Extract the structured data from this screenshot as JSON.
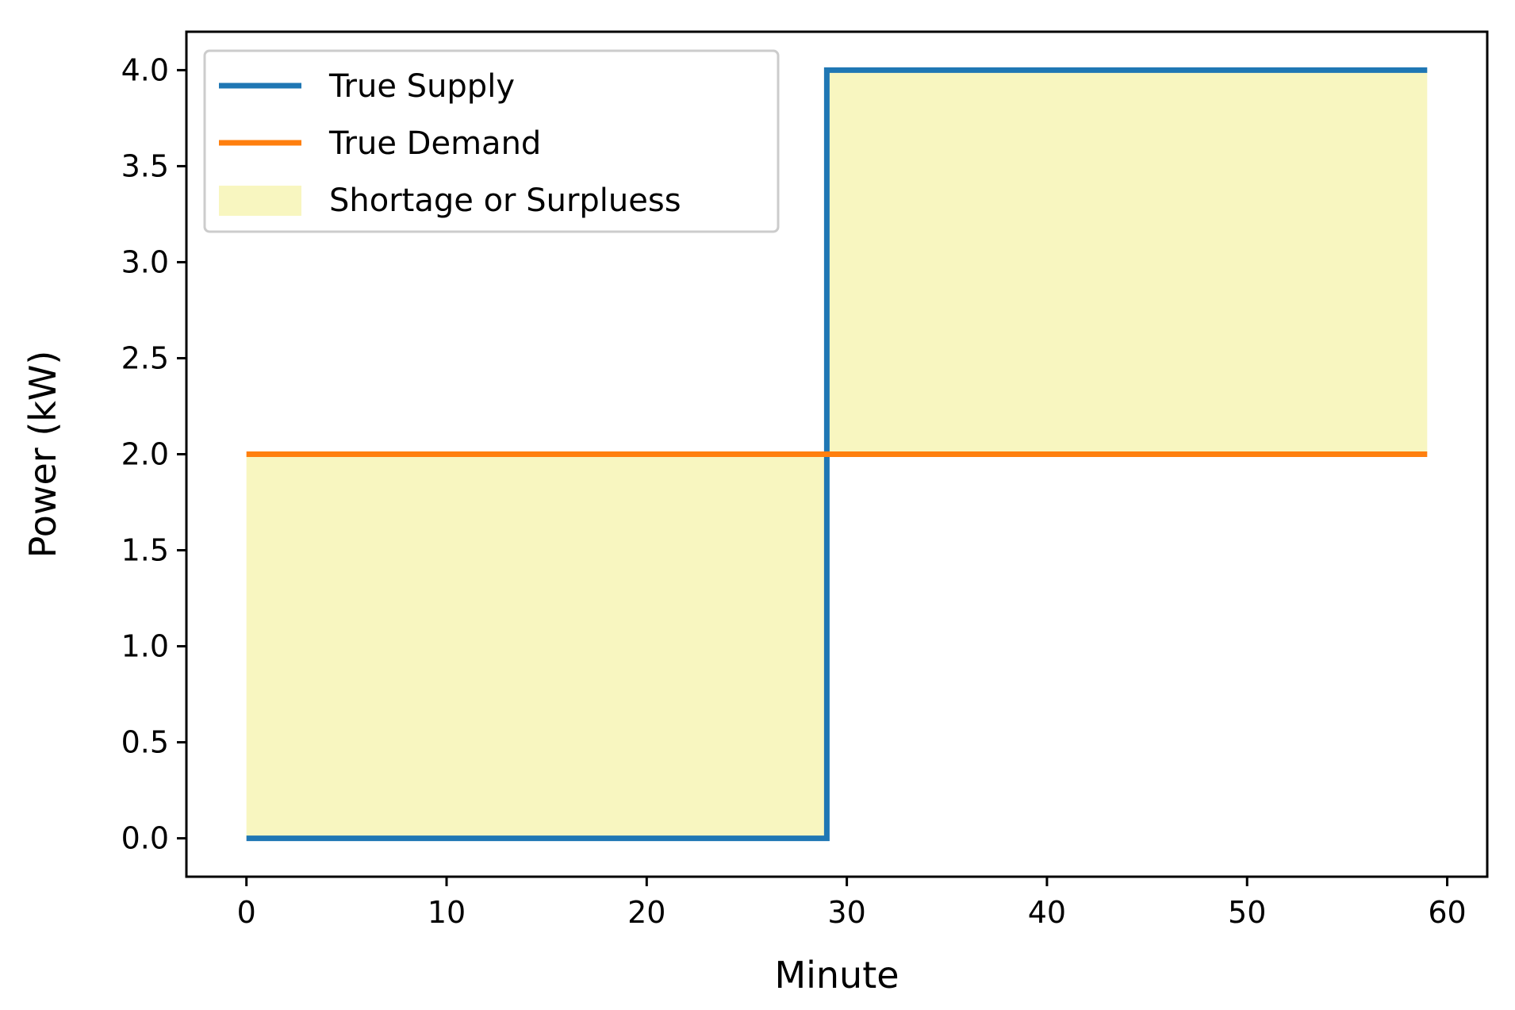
{
  "chart_data": {
    "type": "line",
    "title": "",
    "xlabel": "Minute",
    "ylabel": "Power (kW)",
    "xlim": [
      -3,
      62
    ],
    "ylim": [
      -0.2,
      4.2
    ],
    "xticks": [
      0,
      10,
      20,
      30,
      40,
      50,
      60
    ],
    "xtick_labels": [
      "0",
      "10",
      "20",
      "30",
      "40",
      "50",
      "60"
    ],
    "yticks": [
      0.0,
      0.5,
      1.0,
      1.5,
      2.0,
      2.5,
      3.0,
      3.5,
      4.0
    ],
    "ytick_labels": [
      "0.0",
      "0.5",
      "1.0",
      "1.5",
      "2.0",
      "2.5",
      "3.0",
      "3.5",
      "4.0"
    ],
    "grid": false,
    "legend_position": "top-left",
    "series": [
      {
        "name": "True Supply",
        "color": "#1f77b4",
        "x": [
          0,
          29,
          29,
          59
        ],
        "y": [
          0,
          0,
          4,
          4
        ]
      },
      {
        "name": "True Demand",
        "color": "#ff7f0e",
        "x": [
          0,
          59
        ],
        "y": [
          2,
          2
        ]
      }
    ],
    "fill_between": {
      "name": "Shortage or Surpluess",
      "color": "#f8f6c0",
      "x": [
        0,
        29,
        29,
        59
      ],
      "y1": [
        0,
        0,
        4,
        4
      ],
      "y2": [
        2,
        2,
        2,
        2
      ]
    }
  }
}
